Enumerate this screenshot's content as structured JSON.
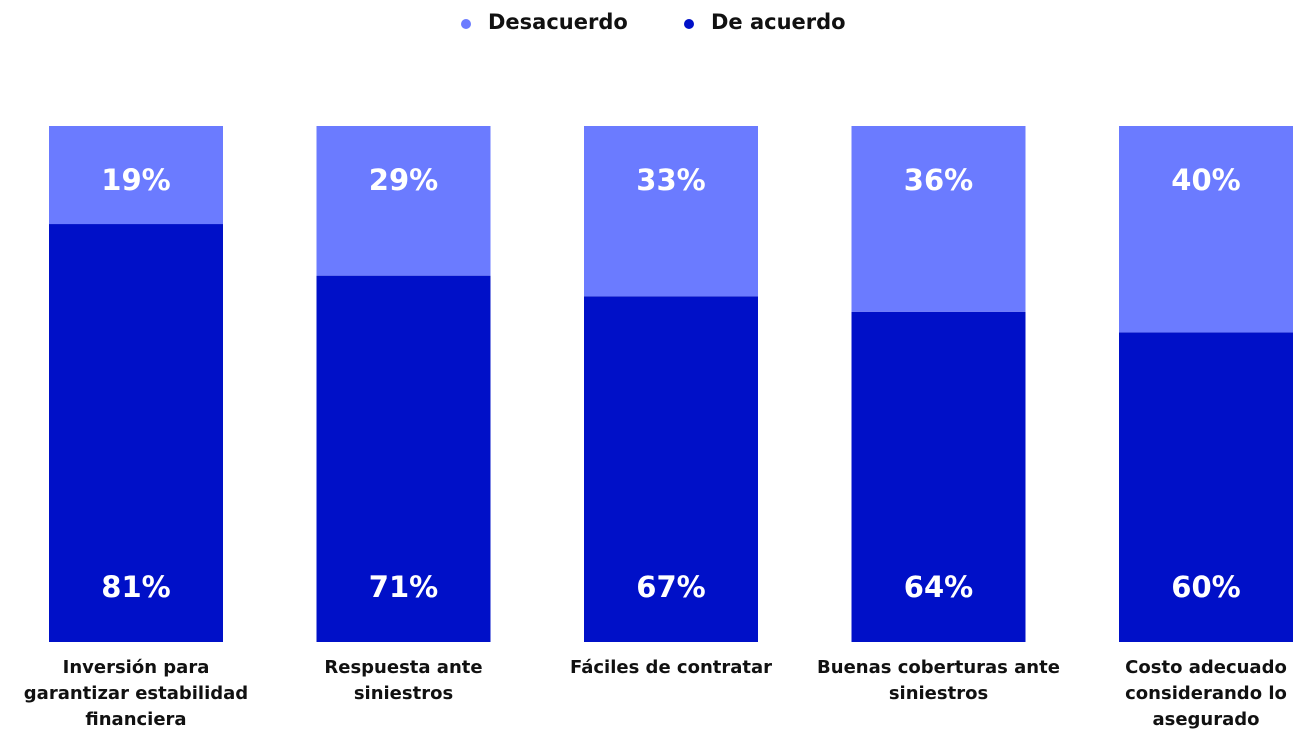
{
  "chart_data": {
    "type": "stacked-bar",
    "categories": [
      "Inversión para garantizar estabilidad financiera",
      "Respuesta ante siniestros",
      "Fáciles de contratar",
      "Buenas coberturas ante siniestros",
      "Costo adecuado considerando lo asegurado"
    ],
    "series": [
      {
        "name": "Desacuerdo",
        "color": "#6b7bff",
        "values": [
          19,
          29,
          33,
          36,
          40
        ],
        "value_labels": [
          "19%",
          "29%",
          "33%",
          "36%",
          "40%"
        ]
      },
      {
        "name": "De acuerdo",
        "color": "#0010c8",
        "values": [
          81,
          71,
          67,
          64,
          60
        ],
        "value_labels": [
          "81%",
          "71%",
          "67%",
          "64%",
          "60%"
        ]
      }
    ],
    "ylim": [
      0,
      100
    ],
    "legend": "top"
  }
}
